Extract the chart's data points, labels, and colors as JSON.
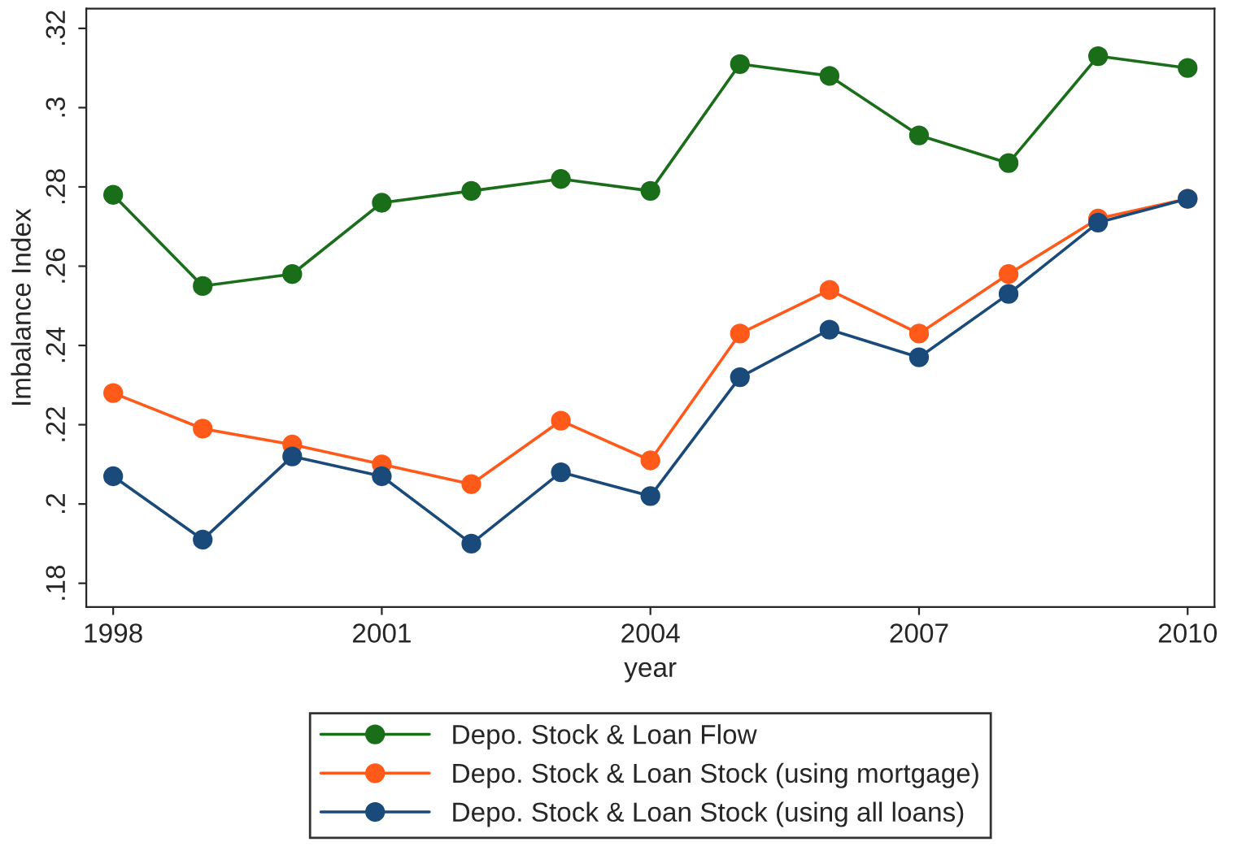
{
  "chart_data": {
    "type": "line",
    "xlabel": "year",
    "ylabel": "Imbalance Index",
    "x": [
      1998,
      1999,
      2000,
      2001,
      2002,
      2003,
      2004,
      2005,
      2006,
      2007,
      2008,
      2009,
      2010
    ],
    "series": [
      {
        "name": "Depo. Stock & Loan Flow",
        "color": "#1a6e1a",
        "values": [
          0.278,
          0.255,
          0.258,
          0.276,
          0.279,
          0.282,
          0.279,
          0.311,
          0.308,
          0.293,
          0.286,
          0.313,
          0.31
        ]
      },
      {
        "name": "Depo. Stock & Loan Stock (using mortgage)",
        "color": "#ff5a1a",
        "values": [
          0.228,
          0.219,
          0.215,
          0.21,
          0.205,
          0.221,
          0.211,
          0.243,
          0.254,
          0.243,
          0.258,
          0.272,
          0.277
        ]
      },
      {
        "name": "Depo. Stock & Loan Stock (using all loans)",
        "color": "#1a4a7a",
        "values": [
          0.207,
          0.191,
          0.212,
          0.207,
          0.19,
          0.208,
          0.202,
          0.232,
          0.244,
          0.237,
          0.253,
          0.271,
          0.277
        ]
      }
    ],
    "xlim": [
      1997.7,
      2010.3
    ],
    "xticks": [
      1998,
      2001,
      2004,
      2007,
      2010
    ],
    "ylim": [
      0.174,
      0.325
    ],
    "yticks": [
      {
        "value": 0.18,
        "label": ".18"
      },
      {
        "value": 0.2,
        "label": ".2"
      },
      {
        "value": 0.22,
        "label": ".22"
      },
      {
        "value": 0.24,
        "label": ".24"
      },
      {
        "value": 0.26,
        "label": ".26"
      },
      {
        "value": 0.28,
        "label": ".28"
      },
      {
        "value": 0.3,
        "label": ".3"
      },
      {
        "value": 0.32,
        "label": ".32"
      }
    ],
    "marker": "circle",
    "line_style": "solid",
    "grid": false,
    "legend": "bottom"
  }
}
